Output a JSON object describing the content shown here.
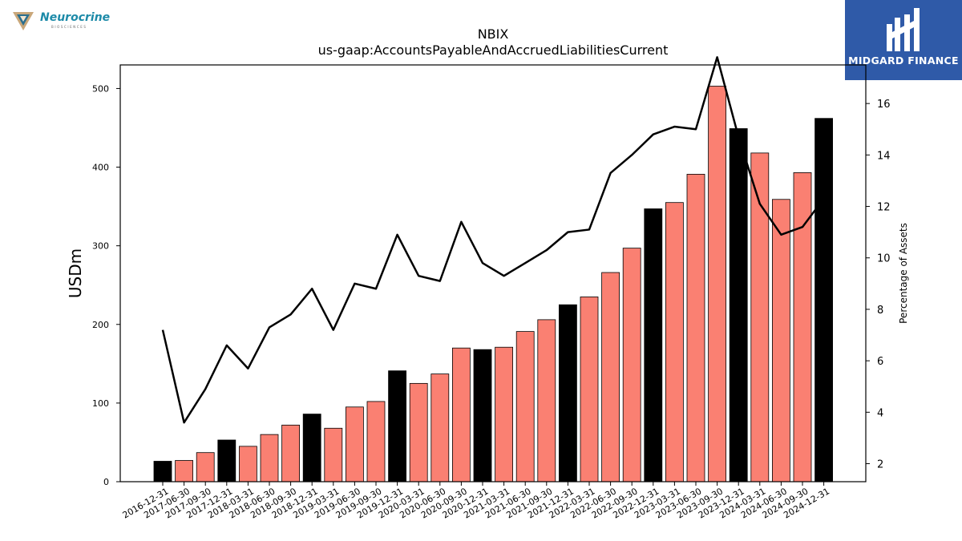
{
  "brand": {
    "left_logo_text": "Neurocrine",
    "left_logo_subtext": "BIOSCIENCES",
    "right_logo_text": "MIDGARD FINANCE",
    "right_logo_bg": "#2f5aa8"
  },
  "chart_data": {
    "type": "bar",
    "title": "NBIX",
    "subtitle": "us-gaap:AccountsPayableAndAccruedLiabilitiesCurrent",
    "ylabel": "USDm",
    "y2label": "Percentage of Assets",
    "ylim": [
      0,
      530
    ],
    "y2lim": [
      1.3,
      17.5
    ],
    "yticks": [
      0,
      100,
      200,
      300,
      400,
      500
    ],
    "y2ticks": [
      2,
      4,
      6,
      8,
      10,
      12,
      14,
      16
    ],
    "grid": false,
    "colors": {
      "annual": "#000000",
      "quarterly": "#fa8072",
      "line": "#000000"
    },
    "categories": [
      "2016-12-31",
      "2017-06-30",
      "2017-09-30",
      "2017-12-31",
      "2018-03-31",
      "2018-06-30",
      "2018-09-30",
      "2018-12-31",
      "2019-03-31",
      "2019-06-30",
      "2019-09-30",
      "2019-12-31",
      "2020-03-31",
      "2020-06-30",
      "2020-09-30",
      "2020-12-31",
      "2021-03-31",
      "2021-06-30",
      "2021-09-30",
      "2021-12-31",
      "2022-03-31",
      "2022-06-30",
      "2022-09-30",
      "2022-12-31",
      "2023-03-31",
      "2023-06-30",
      "2023-09-30",
      "2023-12-31",
      "2024-03-31",
      "2024-06-30",
      "2024-09-30",
      "2024-12-31"
    ],
    "series": [
      {
        "values": [
          26,
          27,
          37,
          53,
          45,
          60,
          72,
          86,
          68,
          95,
          102,
          141,
          125,
          137,
          170,
          168,
          171,
          191,
          206,
          225,
          235,
          266,
          297,
          347,
          355,
          391,
          503,
          449,
          418,
          359,
          393,
          462
        ],
        "annual": [
          true,
          false,
          false,
          true,
          false,
          false,
          false,
          true,
          false,
          false,
          false,
          true,
          false,
          false,
          false,
          true,
          false,
          false,
          false,
          true,
          false,
          false,
          false,
          true,
          false,
          false,
          false,
          true,
          false,
          false,
          false,
          true
        ]
      },
      {
        "axis": "right",
        "values": [
          7.2,
          3.6,
          4.9,
          6.6,
          5.7,
          7.3,
          7.8,
          8.8,
          7.2,
          9.0,
          8.8,
          10.9,
          9.3,
          9.1,
          11.4,
          9.8,
          9.3,
          9.8,
          10.3,
          11.0,
          11.1,
          13.3,
          14.0,
          14.8,
          15.1,
          15.0,
          17.8,
          14.7,
          12.1,
          10.9,
          11.2,
          12.3
        ]
      }
    ]
  }
}
